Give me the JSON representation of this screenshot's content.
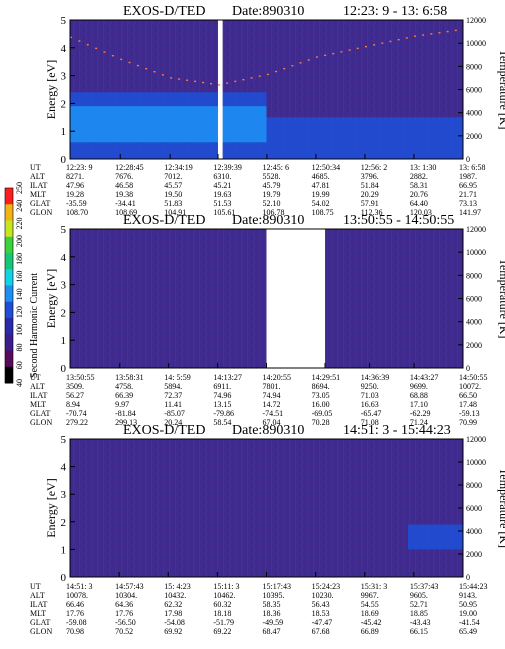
{
  "colorbar": {
    "label": "Second Harmonic Current",
    "ticks": [
      "40",
      "60",
      "80",
      "100",
      "120",
      "140",
      "160",
      "180",
      "200",
      "220",
      "240",
      "250"
    ],
    "colors": [
      "#000000",
      "#5a0a5a",
      "#3a1e8c",
      "#2a2aa8",
      "#1f4ed6",
      "#1f8ef2",
      "#12d2e6",
      "#14c878",
      "#3cd23c",
      "#c8e61e",
      "#f0b414",
      "#ff1e1e"
    ]
  },
  "chart_data": [
    {
      "type": "heatmap",
      "title": "EXOS-D/TED",
      "date_label": "Date:890310",
      "time_range": "12:23: 9 - 13: 6:58",
      "ylabel": "Energy [eV]",
      "ylabel_right": "Temperature [K]",
      "ylim": [
        0,
        5
      ],
      "ylim_right": [
        0,
        12000
      ],
      "yticks": [
        "0",
        "1",
        "2",
        "3",
        "4",
        "5"
      ],
      "yticks_right": [
        "0",
        "2000",
        "4000",
        "6000",
        "8000",
        "10000",
        "12000"
      ],
      "grid": false,
      "gaps": [
        {
          "from": "12:39:39",
          "to": "12:40:10"
        }
      ],
      "bands": [
        {
          "x_start": 0.0,
          "x_end": 0.5,
          "e_low": 0.0,
          "e_high": 2.4,
          "level": "medium"
        },
        {
          "x_start": 0.5,
          "x_end": 1.0,
          "e_low": 0.0,
          "e_high": 1.5,
          "level": "medium"
        },
        {
          "x_start": 0.0,
          "x_end": 0.5,
          "e_low": 0.6,
          "e_high": 1.9,
          "level": "high"
        }
      ],
      "temperature_trace": [
        {
          "ut": "12:23: 9",
          "t": 10500
        },
        {
          "ut": "12:28:45",
          "t": 8600
        },
        {
          "ut": "12:34:19",
          "t": 7000
        },
        {
          "ut": "12:39:39",
          "t": 6400
        },
        {
          "ut": "12:45: 6",
          "t": 7300
        },
        {
          "ut": "12:50:34",
          "t": 8800
        },
        {
          "ut": "12:56: 2",
          "t": 9700
        },
        {
          "ut": "13: 1:30",
          "t": 10600
        },
        {
          "ut": "13: 6:58",
          "t": 11200
        }
      ],
      "orbit_labels": [
        "UT",
        "ALT",
        "ILAT",
        "MLT",
        "GLAT",
        "GLON"
      ],
      "orbit_columns": [
        [
          "12:23: 9",
          "8271.",
          "47.96",
          "19.28",
          "-35.59",
          "108.70"
        ],
        [
          "12:28:45",
          "7676.",
          "46.58",
          "19.38",
          "-34.41",
          "108.69"
        ],
        [
          "12:34:19",
          "7012.",
          "45.57",
          "19.50",
          "51.83",
          "104.91"
        ],
        [
          "12:39:39",
          "6310.",
          "45.21",
          "19.63",
          "51.53",
          "105.61"
        ],
        [
          "12:45: 6",
          "5528.",
          "45.79",
          "19.79",
          "52.10",
          "106.78"
        ],
        [
          "12:50:34",
          "4685.",
          "47.81",
          "19.99",
          "54.02",
          "108.75"
        ],
        [
          "12:56: 2",
          "3796.",
          "51.84",
          "20.29",
          "57.91",
          "112.36"
        ],
        [
          "13: 1:30",
          "2882.",
          "58.31",
          "20.76",
          "64.40",
          "120.03"
        ],
        [
          "13: 6:58",
          "1987.",
          "66.95",
          "21.71",
          "73.13",
          "141.97"
        ]
      ]
    },
    {
      "type": "heatmap",
      "title": "EXOS-D/TED",
      "date_label": "Date:890310",
      "time_range": "13:50:55 - 14:50:55",
      "ylabel": "Energy [eV]",
      "ylabel_right": "Temperature [K]",
      "ylim": [
        0,
        5
      ],
      "ylim_right": [
        0,
        12000
      ],
      "yticks": [
        "0",
        "1",
        "2",
        "3",
        "4",
        "5"
      ],
      "yticks_right": [
        "0",
        "2000",
        "4000",
        "6000",
        "8000",
        "10000",
        "12000"
      ],
      "grid": false,
      "gaps": [
        {
          "from": "14:20:55",
          "to": "14:29:51"
        }
      ],
      "bands": [],
      "temperature_trace": [],
      "orbit_labels": [
        "UT",
        "ALT",
        "ILAT",
        "MLT",
        "GLAT",
        "GLON"
      ],
      "orbit_columns": [
        [
          "13:50:55",
          "3509.",
          "56.27",
          "8.94",
          "-70.74",
          "279.22"
        ],
        [
          "13:58:31",
          "4758.",
          "66.39",
          "9.97",
          "-81.84",
          "299.13"
        ],
        [
          "14: 5:59",
          "5894.",
          "72.37",
          "11.41",
          "-85.07",
          "20.24"
        ],
        [
          "14:13:27",
          "6911.",
          "74.96",
          "13.15",
          "-79.86",
          "58.54"
        ],
        [
          "14:20:55",
          "7801.",
          "74.94",
          "14.72",
          "-74.51",
          "67.04"
        ],
        [
          "14:29:51",
          "8694.",
          "73.05",
          "16.00",
          "-69.05",
          "70.28"
        ],
        [
          "14:36:39",
          "9250.",
          "71.03",
          "16.63",
          "-65.47",
          "71.08"
        ],
        [
          "14:43:27",
          "9699.",
          "68.88",
          "17.10",
          "-62.29",
          "71.24"
        ],
        [
          "14:50:55",
          "10072.",
          "66.50",
          "17.48",
          "-59.13",
          "70.99"
        ]
      ]
    },
    {
      "type": "heatmap",
      "title": "EXOS-D/TED",
      "date_label": "Date:890310",
      "time_range": "14:51: 3 - 15:44:23",
      "ylabel": "Energy [eV]",
      "ylabel_right": "Temperature [K]",
      "ylim": [
        0,
        5
      ],
      "ylim_right": [
        0,
        12000
      ],
      "yticks": [
        "0",
        "1",
        "2",
        "3",
        "4",
        "5"
      ],
      "yticks_right": [
        "0",
        "2000",
        "4000",
        "6000",
        "8000",
        "10000",
        "12000"
      ],
      "grid": false,
      "gaps": [],
      "bands": [
        {
          "x_start": 0.86,
          "x_end": 1.0,
          "e_low": 1.0,
          "e_high": 1.9,
          "level": "medium"
        }
      ],
      "temperature_trace": [],
      "orbit_labels": [
        "UT",
        "ALT",
        "ILAT",
        "MLT",
        "GLAT",
        "GLON"
      ],
      "orbit_columns": [
        [
          "14:51: 3",
          "10078.",
          "66.46",
          "17.76",
          "-59.08",
          "70.98"
        ],
        [
          "14:57:43",
          "10304.",
          "64.36",
          "17.76",
          "-56.50",
          "70.52"
        ],
        [
          "15: 4:23",
          "10432.",
          "62.32",
          "17.98",
          "-54.08",
          "69.92"
        ],
        [
          "15:11: 3",
          "10462.",
          "60.32",
          "18.18",
          "-51.79",
          "69.22"
        ],
        [
          "15:17:43",
          "10395.",
          "58.35",
          "18.36",
          "-49.59",
          "68.47"
        ],
        [
          "15:24:23",
          "10230.",
          "56.43",
          "18.53",
          "-47.47",
          "67.68"
        ],
        [
          "15:31: 3",
          "9967.",
          "54.55",
          "18.69",
          "-45.42",
          "66.89"
        ],
        [
          "15:37:43",
          "9605.",
          "52.71",
          "18.85",
          "-43.43",
          "66.15"
        ],
        [
          "15:44:23",
          "9143.",
          "50.95",
          "19.00",
          "-41.54",
          "65.49"
        ]
      ]
    }
  ]
}
